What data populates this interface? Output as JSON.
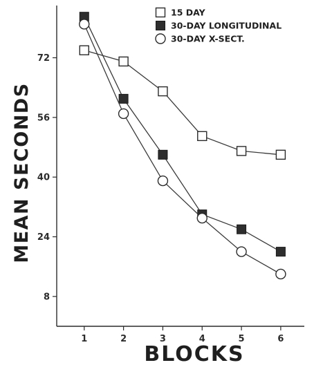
{
  "chart_data": {
    "type": "line",
    "title": "",
    "xlabel": "BLOCKS",
    "ylabel": "MEAN SECONDS",
    "x": [
      1,
      2,
      3,
      4,
      5,
      6
    ],
    "xticks": [
      "1",
      "2",
      "3",
      "4",
      "5",
      "6"
    ],
    "yticks": [
      "8",
      "24",
      "40",
      "56",
      "72"
    ],
    "xlim": [
      0.3,
      6.6
    ],
    "ylim": [
      0,
      86
    ],
    "grid": false,
    "legend_position": "top-right",
    "series": [
      {
        "name": "15 DAY",
        "marker": "open-square",
        "values": [
          74,
          71,
          63,
          51,
          47,
          46
        ]
      },
      {
        "name": "30-DAY LONGITUDINAL",
        "marker": "filled-square",
        "values": [
          83,
          61,
          46,
          30,
          26,
          20
        ]
      },
      {
        "name": "30-DAY X-SECT.",
        "marker": "open-circle",
        "values": [
          81,
          57,
          39,
          29,
          20,
          14
        ]
      }
    ]
  }
}
